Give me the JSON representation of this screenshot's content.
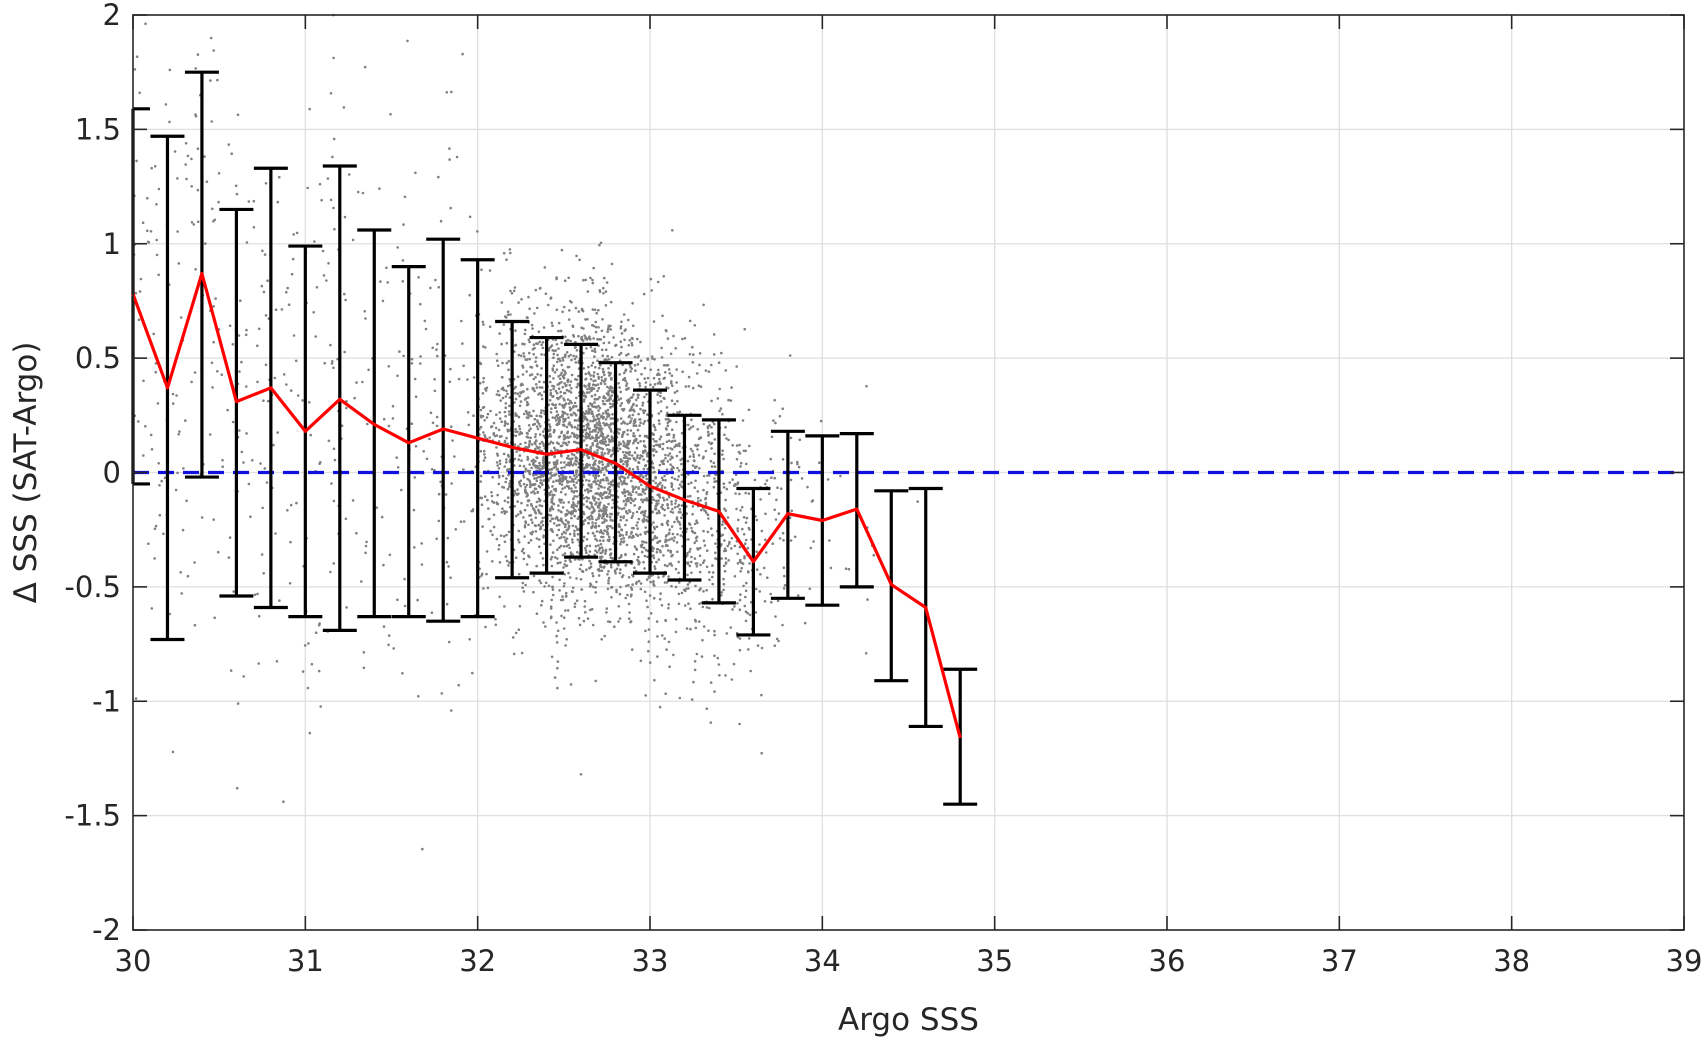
{
  "chart_data": {
    "type": "scatter",
    "xlabel": "Argo SSS",
    "ylabel": "Δ SSS (SAT-Argo)",
    "xlim": [
      30,
      39
    ],
    "ylim": [
      -2,
      2
    ],
    "xticks": [
      30,
      31,
      32,
      33,
      34,
      35,
      36,
      37,
      38,
      39
    ],
    "yticks": [
      -2,
      -1.5,
      -1,
      -0.5,
      0,
      0.5,
      1,
      1.5,
      2
    ],
    "ytick_labels": [
      "-2",
      "-1.5",
      "-1",
      "-0.5",
      "0",
      "0.5",
      "1",
      "1.5",
      "2"
    ],
    "grid": true,
    "reference_line": {
      "y": 0,
      "style": "dashed",
      "color": "#1010e0"
    },
    "mean_line": {
      "color": "#ff0000",
      "x": [
        30.0,
        30.2,
        30.4,
        30.6,
        30.8,
        31.0,
        31.2,
        31.4,
        31.6,
        31.8,
        32.0,
        32.2,
        32.4,
        32.6,
        32.8,
        33.0,
        33.2,
        33.4,
        33.6,
        33.8,
        34.0,
        34.2,
        34.4,
        34.6,
        34.8
      ],
      "y": [
        0.78,
        0.37,
        0.87,
        0.31,
        0.37,
        0.18,
        0.32,
        0.21,
        0.13,
        0.19,
        0.15,
        0.11,
        0.08,
        0.1,
        0.04,
        -0.06,
        -0.12,
        -0.17,
        -0.39,
        -0.18,
        -0.21,
        -0.16,
        -0.49,
        -0.59,
        -1.16
      ]
    },
    "error_bars": {
      "color": "#000000",
      "x": [
        30.0,
        30.2,
        30.4,
        30.6,
        30.8,
        31.0,
        31.2,
        31.4,
        31.6,
        31.8,
        32.0,
        32.2,
        32.4,
        32.6,
        32.8,
        33.0,
        33.2,
        33.4,
        33.6,
        33.8,
        34.0,
        34.2,
        34.4,
        34.6,
        34.8
      ],
      "upper": [
        1.59,
        1.47,
        1.75,
        1.15,
        1.33,
        0.99,
        1.34,
        1.06,
        0.9,
        1.02,
        0.93,
        0.66,
        0.59,
        0.56,
        0.48,
        0.36,
        0.25,
        0.23,
        -0.07,
        0.18,
        0.16,
        0.17,
        -0.08,
        -0.07,
        -0.86
      ],
      "lower": [
        -0.05,
        -0.73,
        -0.02,
        -0.54,
        -0.59,
        -0.63,
        -0.69,
        -0.63,
        -0.63,
        -0.65,
        -0.63,
        -0.46,
        -0.44,
        -0.37,
        -0.39,
        -0.44,
        -0.47,
        -0.57,
        -0.71,
        -0.55,
        -0.58,
        -0.5,
        -0.91,
        -1.11,
        -1.45
      ]
    },
    "scatter": {
      "color": "#808080",
      "count": 4200,
      "seed": 7,
      "x_range": [
        30,
        34.9
      ],
      "density_note_hidden": true
    }
  }
}
